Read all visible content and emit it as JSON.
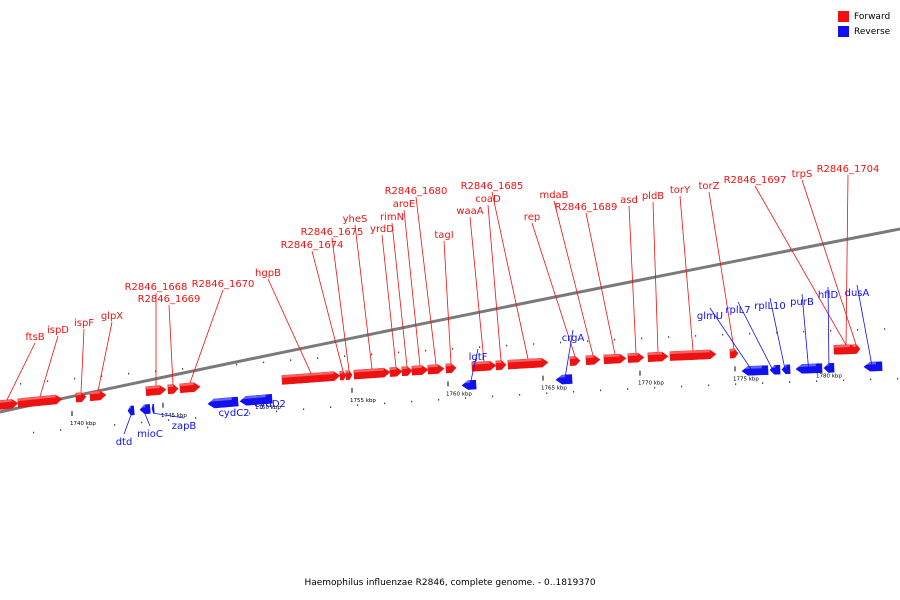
{
  "legend": {
    "forward_label": "Forward",
    "reverse_label": "Reverse",
    "forward_color": "#ee1111",
    "reverse_color": "#1111ee"
  },
  "caption": "Haemophilus influenzae R2846, complete genome. - 0..1819370",
  "axis_ticks": [
    "1740 kbp",
    "1745 kbp",
    "1750 kbp",
    "1755 kbp",
    "1760 kbp",
    "1765 kbp",
    "1770 kbp",
    "1775 kbp",
    "1780 kbp"
  ],
  "genes": [
    {
      "name": "ftsB",
      "strand": "forward"
    },
    {
      "name": "ispD",
      "strand": "forward"
    },
    {
      "name": "ispF",
      "strand": "forward"
    },
    {
      "name": "glpX",
      "strand": "forward"
    },
    {
      "name": "R2846_1668",
      "strand": "forward"
    },
    {
      "name": "R2846_1669",
      "strand": "forward"
    },
    {
      "name": "R2846_1670",
      "strand": "forward"
    },
    {
      "name": "hgpB",
      "strand": "forward"
    },
    {
      "name": "R2846_1674",
      "strand": "forward"
    },
    {
      "name": "R2846_1675",
      "strand": "forward"
    },
    {
      "name": "yheS",
      "strand": "forward"
    },
    {
      "name": "yrdD",
      "strand": "forward"
    },
    {
      "name": "rimN",
      "strand": "forward"
    },
    {
      "name": "aroE",
      "strand": "forward"
    },
    {
      "name": "R2846_1680",
      "strand": "forward"
    },
    {
      "name": "tagI",
      "strand": "forward"
    },
    {
      "name": "waaA",
      "strand": "forward"
    },
    {
      "name": "coaD",
      "strand": "forward"
    },
    {
      "name": "R2846_1685",
      "strand": "forward"
    },
    {
      "name": "rep",
      "strand": "forward"
    },
    {
      "name": "mdaB",
      "strand": "forward"
    },
    {
      "name": "R2846_1689",
      "strand": "forward"
    },
    {
      "name": "asd",
      "strand": "forward"
    },
    {
      "name": "pldB",
      "strand": "forward"
    },
    {
      "name": "torY",
      "strand": "forward"
    },
    {
      "name": "torZ",
      "strand": "forward"
    },
    {
      "name": "R2846_1697",
      "strand": "forward"
    },
    {
      "name": "trpS",
      "strand": "forward"
    },
    {
      "name": "R2846_1704",
      "strand": "forward"
    },
    {
      "name": "dtd",
      "strand": "reverse"
    },
    {
      "name": "mioC",
      "strand": "reverse"
    },
    {
      "name": "zapB",
      "strand": "reverse"
    },
    {
      "name": "cydC2",
      "strand": "reverse"
    },
    {
      "name": "cydD2",
      "strand": "reverse"
    },
    {
      "name": "lgtF",
      "strand": "reverse"
    },
    {
      "name": "crgA",
      "strand": "reverse"
    },
    {
      "name": "glmU",
      "strand": "reverse"
    },
    {
      "name": "rplL7",
      "strand": "reverse"
    },
    {
      "name": "rplL10",
      "strand": "reverse"
    },
    {
      "name": "purB",
      "strand": "reverse"
    },
    {
      "name": "hflD",
      "strand": "reverse"
    },
    {
      "name": "dusA",
      "strand": "reverse"
    }
  ]
}
